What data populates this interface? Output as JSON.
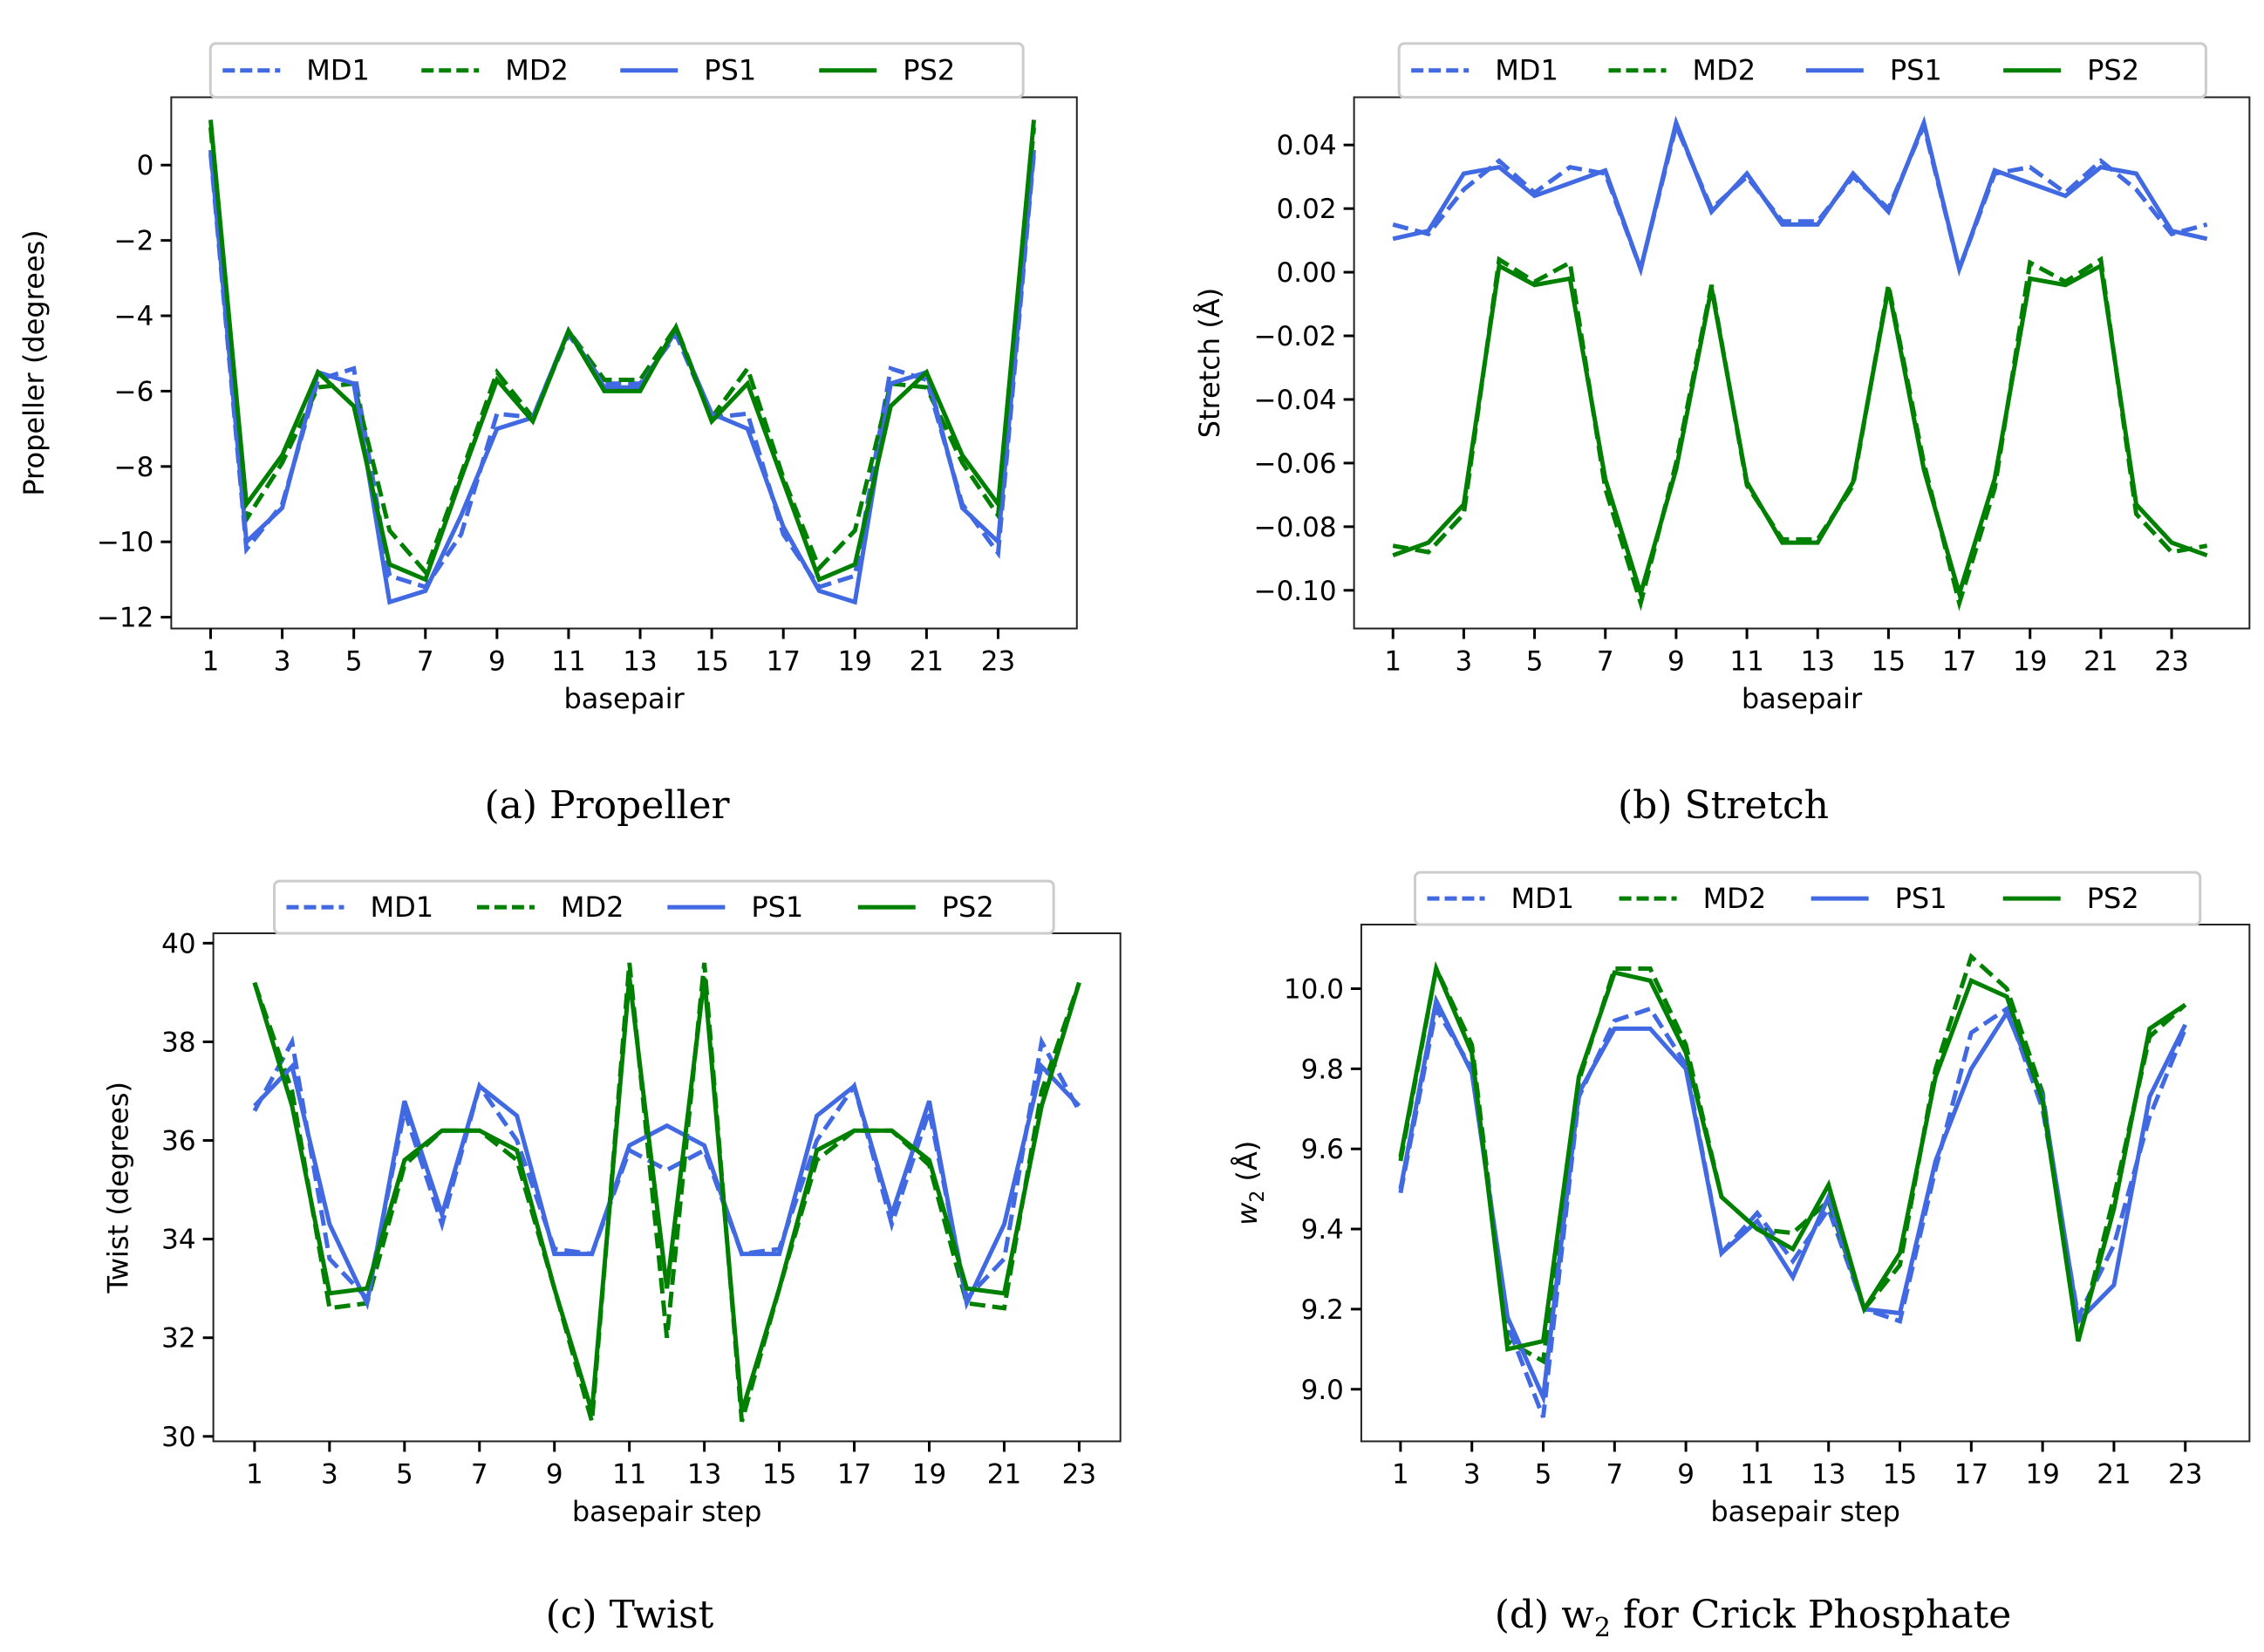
{
  "figure": {
    "legend": {
      "entries": [
        {
          "key": "MD1",
          "label": "MD1",
          "color": "#4169e1",
          "style": "dashed"
        },
        {
          "key": "MD2",
          "label": "MD2",
          "color": "#008000",
          "style": "dashed"
        },
        {
          "key": "PS1",
          "label": "PS1",
          "color": "#4169e1",
          "style": "solid"
        },
        {
          "key": "PS2",
          "label": "PS2",
          "color": "#008000",
          "style": "solid"
        }
      ],
      "placement": "top-center-outside"
    },
    "captions": [
      {
        "label": "(a) Propeller"
      },
      {
        "label": "(b) Stretch"
      },
      {
        "label": "(c) Twist"
      },
      {
        "label_prefix": "(d) w",
        "label_sub": "2",
        "label_suffix": " for Crick Phosphate"
      }
    ]
  },
  "chart_data": [
    {
      "id": "propeller",
      "type": "line",
      "title": "(a) Propeller",
      "xlabel": "basepair",
      "ylabel": "Propeller (degrees)",
      "x": [
        1,
        2,
        3,
        4,
        5,
        6,
        7,
        8,
        9,
        10,
        11,
        12,
        13,
        14,
        15,
        16,
        17,
        18,
        19,
        20,
        21,
        22,
        23,
        24
      ],
      "xticks": [
        1,
        3,
        5,
        7,
        9,
        11,
        13,
        15,
        17,
        19,
        21,
        23
      ],
      "xticklabels": [
        "1",
        "3",
        "5",
        "7",
        "9",
        "11",
        "13",
        "15",
        "17",
        "19",
        "21",
        "23"
      ],
      "xlim": [
        -0.1,
        25.2
      ],
      "yticks": [
        0,
        -2,
        -4,
        -6,
        -8,
        -10,
        -12
      ],
      "yticklabels": [
        "0",
        "−2",
        "−4",
        "−6",
        "−8",
        "−10",
        "−12"
      ],
      "ylim": [
        -12.3,
        1.8
      ],
      "grid": false,
      "legend": "top-center-outside",
      "series": [
        {
          "name": "MD1",
          "values": [
            0.3,
            -10.2,
            -9.0,
            -5.7,
            -5.4,
            -10.9,
            -11.2,
            -9.8,
            -6.6,
            -6.7,
            -4.5,
            -5.8,
            -5.8,
            -4.5,
            -6.7,
            -6.6,
            -9.8,
            -11.2,
            -10.9,
            -5.4,
            -5.7,
            -9.0,
            -10.3,
            0.3
          ]
        },
        {
          "name": "MD2",
          "values": [
            1.0,
            -9.4,
            -7.9,
            -5.9,
            -5.8,
            -9.7,
            -10.8,
            -8.2,
            -5.5,
            -6.7,
            -4.4,
            -5.7,
            -5.7,
            -4.3,
            -6.7,
            -5.4,
            -8.3,
            -10.7,
            -9.7,
            -5.8,
            -5.9,
            -7.9,
            -9.3,
            1.0
          ]
        },
        {
          "name": "PS1",
          "values": [
            0.4,
            -10.0,
            -9.1,
            -5.5,
            -5.8,
            -11.6,
            -11.3,
            -9.3,
            -7.0,
            -6.7,
            -4.4,
            -5.9,
            -5.9,
            -4.4,
            -6.6,
            -7.0,
            -9.6,
            -11.3,
            -11.6,
            -5.8,
            -5.5,
            -9.1,
            -10.0,
            0.4
          ]
        },
        {
          "name": "PS2",
          "values": [
            1.2,
            -9.0,
            -7.7,
            -5.5,
            -6.4,
            -10.6,
            -11.0,
            -8.3,
            -5.7,
            -6.8,
            -4.4,
            -6.0,
            -6.0,
            -4.3,
            -6.8,
            -5.8,
            -8.4,
            -11.0,
            -10.6,
            -6.4,
            -5.5,
            -7.7,
            -9.0,
            1.2
          ]
        }
      ]
    },
    {
      "id": "stretch",
      "type": "line",
      "title": "(b) Stretch",
      "xlabel": "basepair",
      "ylabel": "Stretch (Å)",
      "x": [
        1,
        2,
        3,
        4,
        5,
        6,
        7,
        8,
        9,
        10,
        11,
        12,
        13,
        14,
        15,
        16,
        17,
        18,
        19,
        20,
        21,
        22,
        23,
        24
      ],
      "xticks": [
        1,
        3,
        5,
        7,
        9,
        11,
        13,
        15,
        17,
        19,
        21,
        23
      ],
      "xticklabels": [
        "1",
        "3",
        "5",
        "7",
        "9",
        "11",
        "13",
        "15",
        "17",
        "19",
        "21",
        "23"
      ],
      "xlim": [
        -0.1,
        25.2
      ],
      "yticks": [
        0.04,
        0.02,
        0.0,
        -0.02,
        -0.04,
        -0.06,
        -0.08,
        -0.1
      ],
      "yticklabels": [
        "0.04",
        "0.02",
        "0.00",
        "−0.02",
        "−0.04",
        "−0.06",
        "−0.08",
        "−0.10"
      ],
      "ylim": [
        -0.112,
        0.055
      ],
      "grid": false,
      "legend": "top-center-outside",
      "series": [
        {
          "name": "MD1",
          "values": [
            0.015,
            0.012,
            0.026,
            0.035,
            0.025,
            0.033,
            0.031,
            0.001,
            0.046,
            0.02,
            0.03,
            0.016,
            0.016,
            0.03,
            0.02,
            0.046,
            0.001,
            0.031,
            0.033,
            0.025,
            0.035,
            0.026,
            0.012,
            0.015
          ]
        },
        {
          "name": "MD2",
          "values": [
            -0.086,
            -0.088,
            -0.076,
            0.004,
            -0.003,
            0.003,
            -0.068,
            -0.104,
            -0.06,
            -0.004,
            -0.067,
            -0.084,
            -0.084,
            -0.067,
            -0.004,
            -0.06,
            -0.104,
            -0.068,
            0.003,
            -0.003,
            0.004,
            -0.076,
            -0.088,
            -0.086
          ]
        },
        {
          "name": "PS1",
          "values": [
            0.0105,
            0.013,
            0.031,
            0.033,
            0.024,
            0.028,
            0.032,
            0.001,
            0.047,
            0.019,
            0.031,
            0.015,
            0.015,
            0.031,
            0.019,
            0.047,
            0.001,
            0.032,
            0.028,
            0.024,
            0.033,
            0.031,
            0.013,
            0.0105
          ]
        },
        {
          "name": "PS2",
          "values": [
            -0.089,
            -0.085,
            -0.073,
            0.002,
            -0.004,
            -0.002,
            -0.065,
            -0.101,
            -0.062,
            -0.005,
            -0.066,
            -0.085,
            -0.085,
            -0.066,
            -0.005,
            -0.062,
            -0.101,
            -0.065,
            -0.002,
            -0.004,
            0.002,
            -0.073,
            -0.085,
            -0.089
          ]
        }
      ]
    },
    {
      "id": "twist",
      "type": "line",
      "title": "(c) Twist",
      "xlabel": "basepair step",
      "ylabel": "Twist (degrees)",
      "x": [
        1,
        2,
        3,
        4,
        5,
        6,
        7,
        8,
        9,
        10,
        11,
        12,
        13,
        14,
        15,
        16,
        17,
        18,
        19,
        20,
        21,
        22,
        23
      ],
      "xticks": [
        1,
        3,
        5,
        7,
        9,
        11,
        13,
        15,
        17,
        19,
        21,
        23
      ],
      "xticklabels": [
        "1",
        "3",
        "5",
        "7",
        "9",
        "11",
        "13",
        "15",
        "17",
        "19",
        "21",
        "23"
      ],
      "xlim": [
        -0.1,
        24.1
      ],
      "yticks": [
        40,
        38,
        36,
        34,
        32,
        30
      ],
      "yticklabels": [
        "40",
        "38",
        "36",
        "34",
        "32",
        "30"
      ],
      "ylim": [
        29.9,
        40.2
      ],
      "grid": false,
      "legend": "top-center-outside",
      "series": [
        {
          "name": "MD1",
          "values": [
            36.6,
            38.0,
            33.6,
            32.8,
            36.6,
            34.3,
            37.1,
            36.0,
            33.8,
            33.7,
            35.8,
            35.4,
            35.8,
            33.7,
            33.8,
            36.0,
            37.1,
            34.3,
            36.6,
            32.8,
            33.6,
            38.0,
            36.6
          ]
        },
        {
          "name": "MD2",
          "values": [
            39.2,
            37.0,
            32.6,
            32.7,
            35.5,
            36.2,
            36.2,
            35.6,
            33.0,
            30.3,
            39.6,
            32.0,
            39.6,
            30.3,
            33.0,
            35.6,
            36.2,
            36.2,
            35.5,
            32.7,
            32.6,
            37.0,
            39.2
          ]
        },
        {
          "name": "PS1",
          "values": [
            36.7,
            37.5,
            34.3,
            32.7,
            36.8,
            34.5,
            37.1,
            36.5,
            33.7,
            33.7,
            35.9,
            36.3,
            35.9,
            33.7,
            33.7,
            36.5,
            37.1,
            34.5,
            36.8,
            32.7,
            34.3,
            37.5,
            36.7
          ]
        },
        {
          "name": "PS2",
          "values": [
            39.2,
            36.7,
            32.9,
            33.0,
            35.6,
            36.2,
            36.2,
            35.8,
            33.0,
            30.5,
            39.3,
            33.0,
            39.3,
            30.5,
            33.0,
            35.8,
            36.2,
            36.2,
            35.6,
            33.0,
            32.9,
            36.7,
            39.2
          ]
        }
      ]
    },
    {
      "id": "w2",
      "type": "line",
      "title": "(d) w2 for Crick Phosphate",
      "xlabel": "basepair step",
      "ylabel_prefix": "w",
      "ylabel_sub": "2",
      "ylabel_suffix": " (Å)",
      "x": [
        1,
        2,
        3,
        4,
        5,
        6,
        7,
        8,
        9,
        10,
        11,
        12,
        13,
        14,
        15,
        16,
        17,
        18,
        19,
        20,
        21,
        22,
        23
      ],
      "xticks": [
        1,
        3,
        5,
        7,
        9,
        11,
        13,
        15,
        17,
        19,
        21,
        23
      ],
      "xticklabels": [
        "1",
        "3",
        "5",
        "7",
        "9",
        "11",
        "13",
        "15",
        "17",
        "19",
        "21",
        "23"
      ],
      "xlim": [
        -0.1,
        24.8
      ],
      "yticks": [
        10.0,
        9.8,
        9.6,
        9.4,
        9.2,
        9.0
      ],
      "yticklabels": [
        "10.0",
        "9.8",
        "9.6",
        "9.4",
        "9.2",
        "9.0"
      ],
      "ylim": [
        8.87,
        10.16
      ],
      "grid": false,
      "legend": "top-center-outside",
      "series": [
        {
          "name": "MD1",
          "values": [
            9.49,
            9.95,
            9.8,
            9.16,
            8.93,
            9.73,
            9.92,
            9.95,
            9.81,
            9.34,
            9.44,
            9.32,
            9.45,
            9.2,
            9.17,
            9.55,
            9.89,
            9.95,
            9.7,
            9.18,
            9.36,
            9.68,
            9.9
          ]
        },
        {
          "name": "MD2",
          "values": [
            9.57,
            10.05,
            9.86,
            9.12,
            9.07,
            9.77,
            10.05,
            10.05,
            9.86,
            9.48,
            9.4,
            9.39,
            9.47,
            9.2,
            9.31,
            9.8,
            10.08,
            10.0,
            9.74,
            9.12,
            9.48,
            9.88,
            9.96
          ]
        },
        {
          "name": "PS1",
          "values": [
            9.5,
            9.97,
            9.79,
            9.18,
            8.98,
            9.74,
            9.9,
            9.9,
            9.8,
            9.34,
            9.42,
            9.28,
            9.48,
            9.2,
            9.19,
            9.57,
            9.8,
            9.94,
            9.73,
            9.17,
            9.26,
            9.73,
            9.91
          ]
        },
        {
          "name": "PS2",
          "values": [
            9.58,
            10.05,
            9.84,
            9.1,
            9.12,
            9.78,
            10.04,
            10.02,
            9.84,
            9.48,
            9.4,
            9.35,
            9.51,
            9.2,
            9.34,
            9.78,
            10.02,
            9.98,
            9.72,
            9.12,
            9.45,
            9.9,
            9.96
          ]
        }
      ]
    }
  ]
}
